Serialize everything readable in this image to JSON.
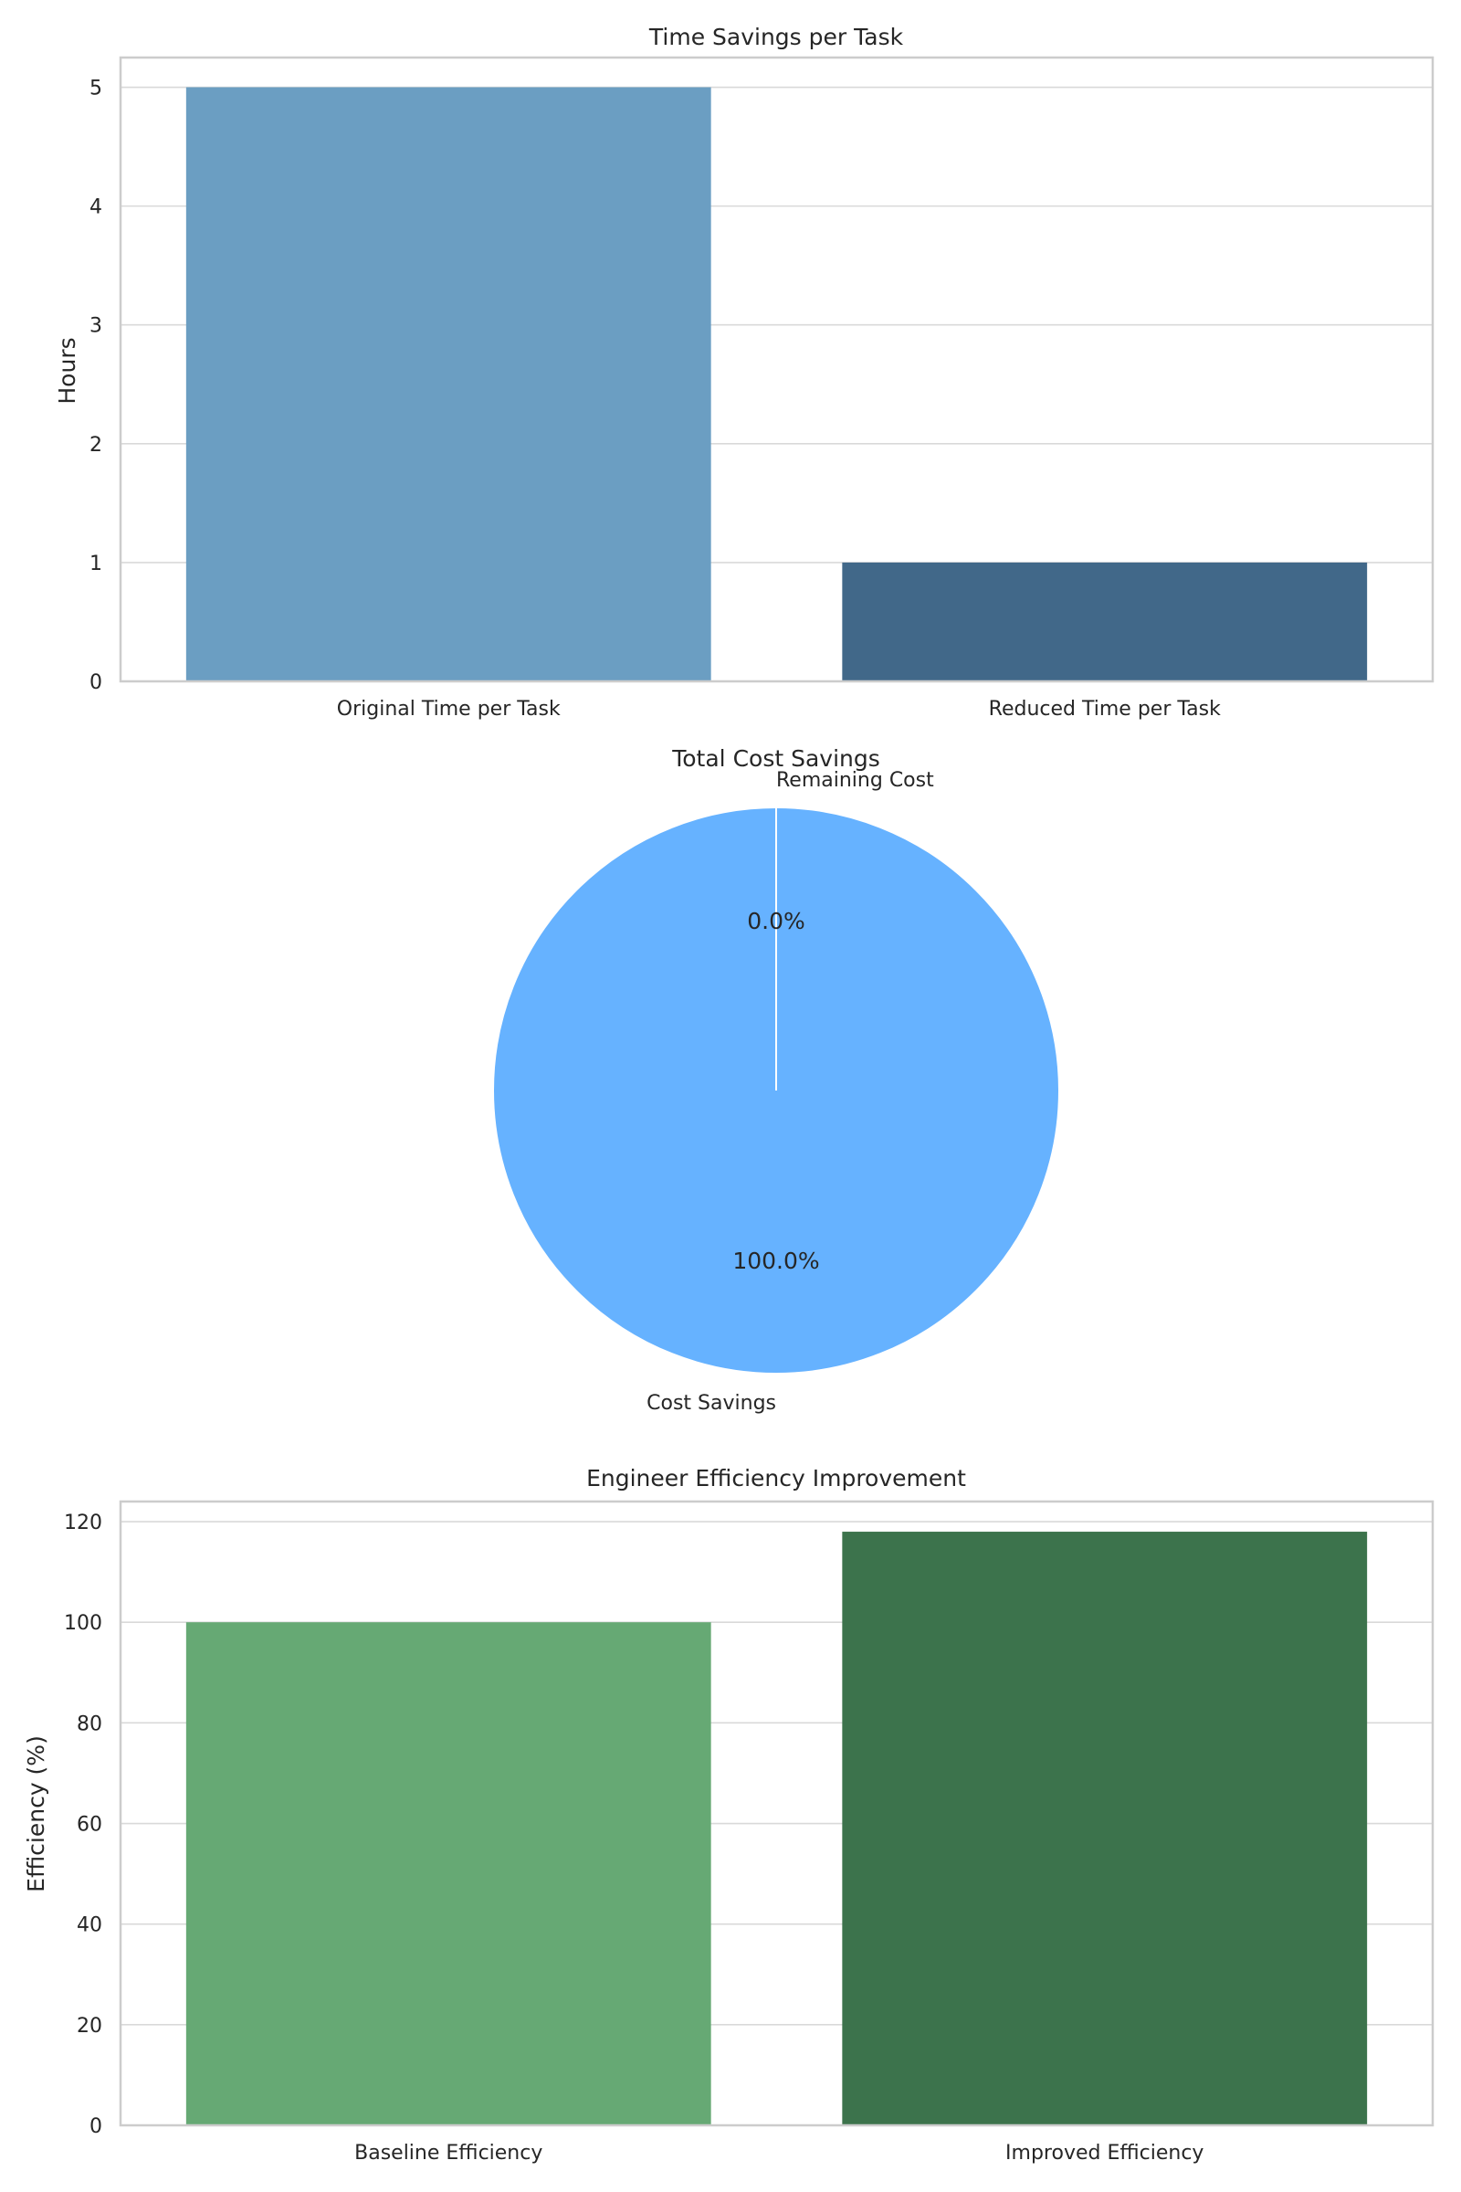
{
  "chart_data": [
    {
      "type": "bar",
      "title": "Time Savings per Task",
      "xlabel": "",
      "ylabel": "Hours",
      "categories": [
        "Original Time per Task",
        "Reduced Time per Task"
      ],
      "values": [
        5,
        1
      ],
      "colors": [
        "#6b9ec2",
        "#416889"
      ],
      "ylim": [
        0,
        5.25
      ],
      "yticks": [
        0,
        1,
        2,
        3,
        4,
        5
      ],
      "grid": true,
      "legend": "none"
    },
    {
      "type": "pie",
      "title": "Total Cost Savings",
      "labels": [
        "Cost Savings",
        "Remaining Cost"
      ],
      "values": [
        100,
        0
      ],
      "percent_labels": [
        "100.0%",
        "0.0%"
      ],
      "colors": [
        "#66b2ff",
        "#ff9999"
      ],
      "start_angle": 90,
      "legend": "none"
    },
    {
      "type": "bar",
      "title": "Engineer Efficiency Improvement",
      "xlabel": "",
      "ylabel": "Efficiency (%)",
      "categories": [
        "Baseline Efficiency",
        "Improved Efficiency"
      ],
      "values": [
        100,
        118
      ],
      "colors": [
        "#66a974",
        "#3c734c"
      ],
      "ylim": [
        0,
        124
      ],
      "yticks": [
        0,
        20,
        40,
        60,
        80,
        100,
        120
      ],
      "grid": true,
      "legend": "none"
    }
  ]
}
